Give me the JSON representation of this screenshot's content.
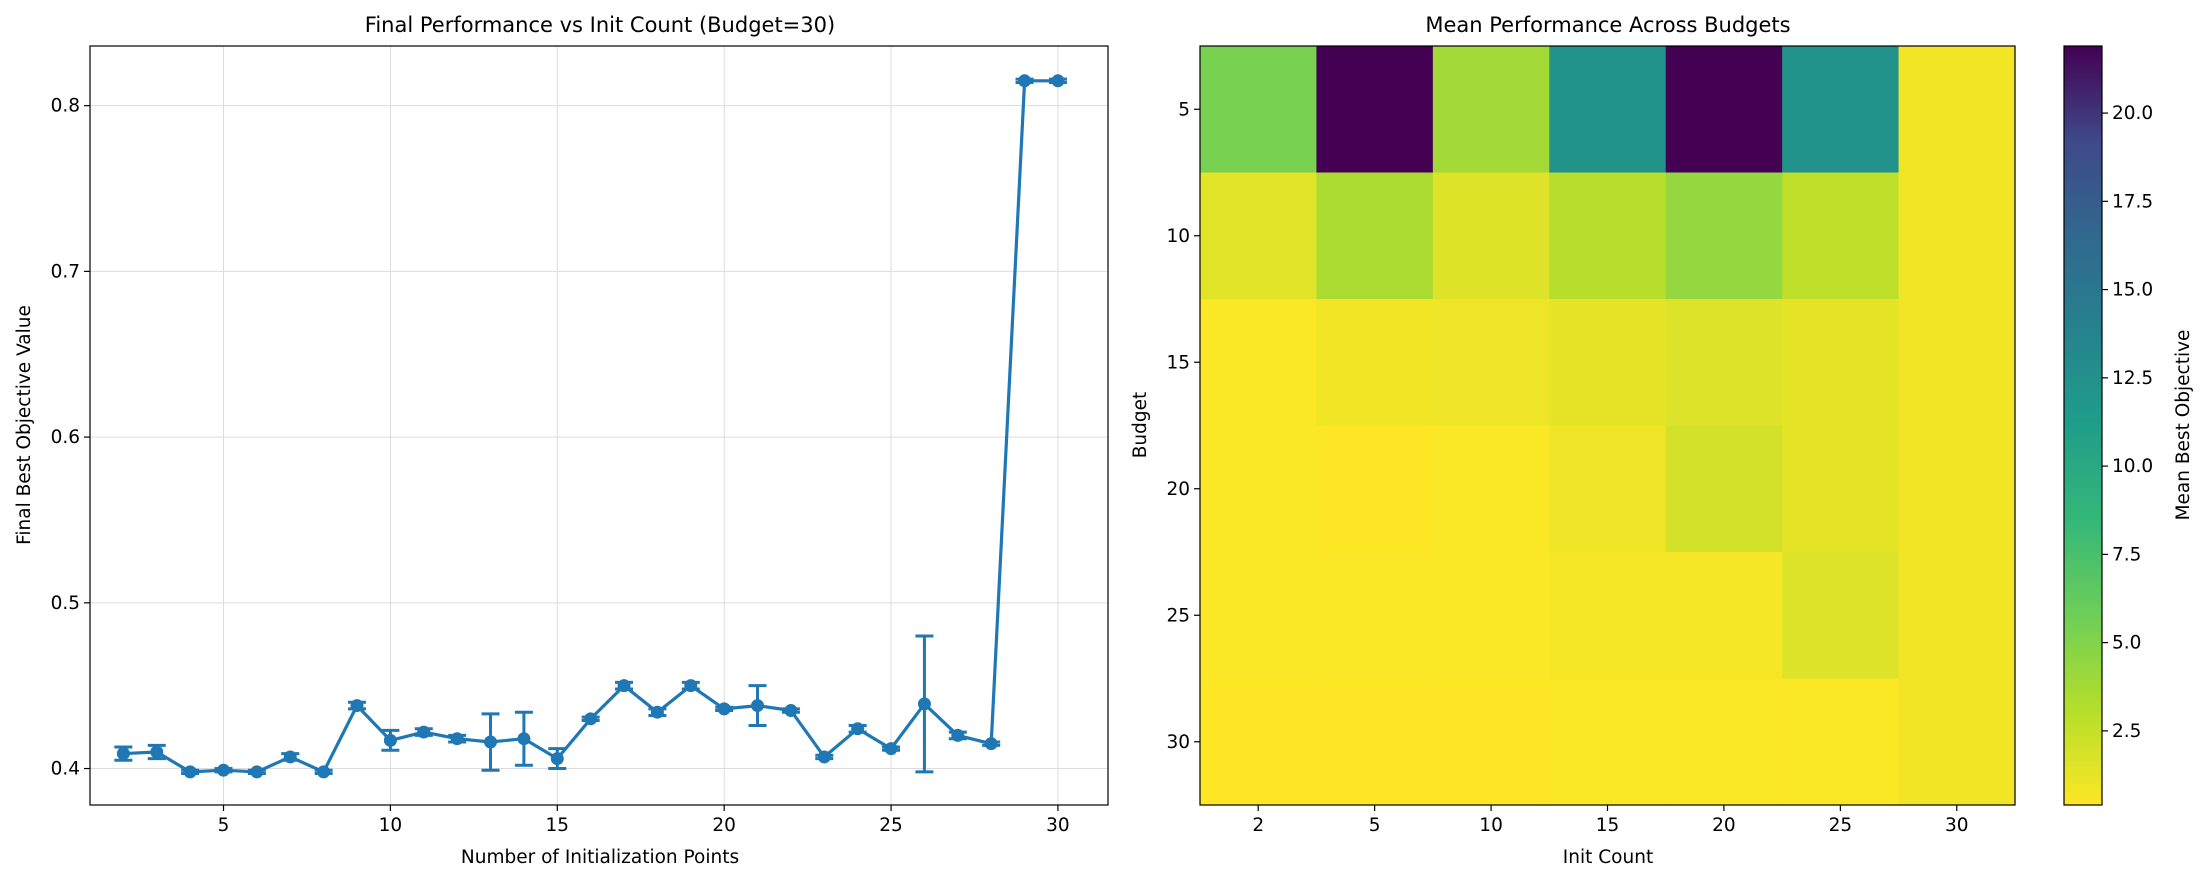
{
  "chart_data": [
    {
      "type": "line",
      "title": "Final Performance vs Init Count (Budget=30)",
      "xlabel": "Number of Initialization Points",
      "ylabel": "Final Best Objective Value",
      "xlim": [
        1,
        31.5
      ],
      "ylim": [
        0.378,
        0.836
      ],
      "xticks": [
        5,
        10,
        15,
        20,
        25,
        30
      ],
      "yticks": [
        0.4,
        0.5,
        0.6,
        0.7,
        0.8
      ],
      "grid": true,
      "series": [
        {
          "color": "#1f77b4",
          "x": [
            2,
            3,
            4,
            5,
            6,
            7,
            8,
            9,
            10,
            11,
            12,
            13,
            14,
            15,
            16,
            17,
            18,
            19,
            20,
            21,
            22,
            23,
            24,
            25,
            26,
            27,
            28,
            29,
            30
          ],
          "y": [
            0.409,
            0.41,
            0.398,
            0.399,
            0.398,
            0.407,
            0.398,
            0.438,
            0.417,
            0.422,
            0.418,
            0.416,
            0.418,
            0.406,
            0.43,
            0.45,
            0.434,
            0.45,
            0.436,
            0.438,
            0.435,
            0.407,
            0.424,
            0.412,
            0.439,
            0.42,
            0.415,
            0.815,
            0.815
          ],
          "err": [
            0.004,
            0.004,
            0.001,
            0.001,
            0.001,
            0.002,
            0.001,
            0.002,
            0.006,
            0.002,
            0.002,
            0.017,
            0.016,
            0.006,
            0.001,
            0.002,
            0.002,
            0.002,
            0.001,
            0.012,
            0.001,
            0.001,
            0.002,
            0.001,
            0.041,
            0.002,
            0.001,
            0.001,
            0.001
          ]
        }
      ]
    },
    {
      "type": "heatmap",
      "title": "Mean Performance Across Budgets",
      "xlabel": "Init Count",
      "ylabel": "Budget",
      "x_categories": [
        "2",
        "5",
        "10",
        "15",
        "20",
        "25",
        "30"
      ],
      "y_categories": [
        "5",
        "10",
        "15",
        "20",
        "25",
        "30"
      ],
      "values": [
        [
          4.8,
          21.9,
          3.4,
          10.9,
          21.9,
          10.9,
          0.8
        ],
        [
          1.3,
          3.1,
          1.4,
          2.7,
          3.9,
          2.5,
          0.8
        ],
        [
          0.5,
          0.8,
          0.9,
          1.2,
          1.5,
          1.2,
          0.8
        ],
        [
          0.5,
          0.4,
          0.5,
          0.9,
          1.8,
          1.2,
          0.8
        ],
        [
          0.5,
          0.5,
          0.5,
          0.6,
          0.6,
          1.5,
          0.8
        ],
        [
          0.4,
          0.4,
          0.4,
          0.5,
          0.5,
          0.5,
          0.8
        ]
      ],
      "colormap": "viridis_r",
      "colorbar": {
        "label": "Mean Best Objective",
        "vmin": 0.4,
        "vmax": 21.9,
        "ticks": [
          "2.5",
          "5.0",
          "7.5",
          "10.0",
          "12.5",
          "15.0",
          "17.5",
          "20.0"
        ]
      }
    }
  ]
}
